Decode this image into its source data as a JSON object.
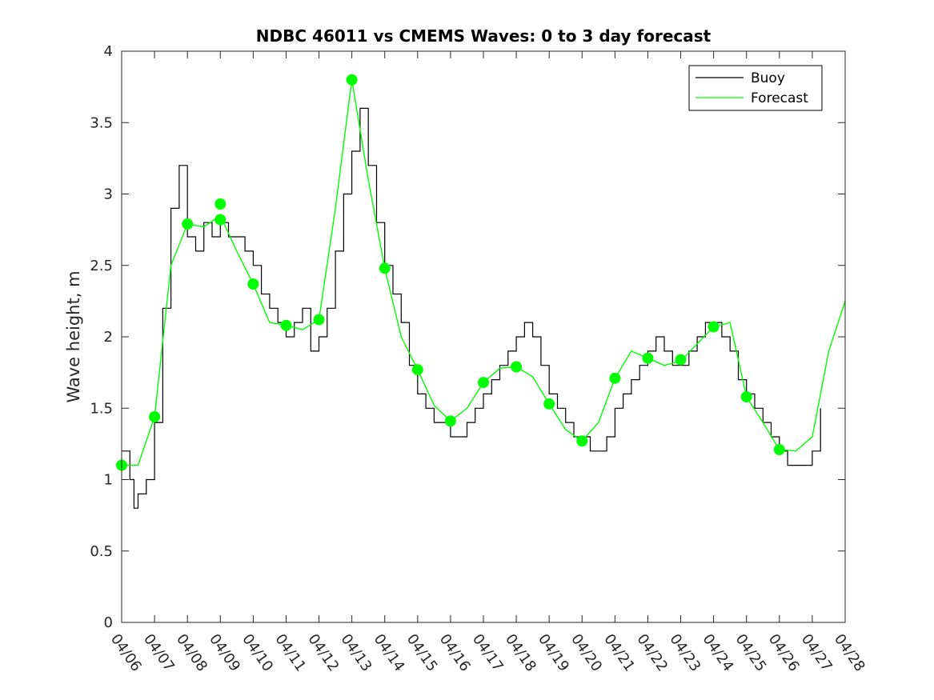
{
  "chart_data": {
    "type": "line",
    "title": "NDBC 46011 vs CMEMS Waves: 0 to 3 day forecast",
    "xlabel": "",
    "ylabel": "Wave height, m",
    "xlim": [
      "04/06",
      "04/28"
    ],
    "ylim": [
      0,
      4
    ],
    "x_tick_labels": [
      "04/06",
      "04/07",
      "04/08",
      "04/09",
      "04/10",
      "04/11",
      "04/12",
      "04/13",
      "04/14",
      "04/15",
      "04/16",
      "04/17",
      "04/18",
      "04/19",
      "04/20",
      "04/21",
      "04/22",
      "04/23",
      "04/24",
      "04/25",
      "04/26",
      "04/27",
      "04/28"
    ],
    "y_tick_labels": [
      "0",
      "0.5",
      "1",
      "1.5",
      "2",
      "2.5",
      "3",
      "3.5",
      "4"
    ],
    "y_ticks": [
      0,
      0.5,
      1,
      1.5,
      2,
      2.5,
      3,
      3.5,
      4
    ],
    "legend": {
      "position": "top-right",
      "entries": [
        "Buoy",
        "Forecast"
      ]
    },
    "colors": {
      "buoy": "#000000",
      "forecast": "#00ff00",
      "marker": "#00ff00"
    },
    "series": [
      {
        "name": "Buoy",
        "x": [
          "04/06 00:00",
          "04/06 06:00",
          "04/06 09:00",
          "04/06 12:00",
          "04/06 18:00",
          "04/07 00:00",
          "04/07 06:00",
          "04/07 12:00",
          "04/07 18:00",
          "04/08 00:00",
          "04/08 06:00",
          "04/08 12:00",
          "04/08 18:00",
          "04/09 00:00",
          "04/09 06:00",
          "04/09 12:00",
          "04/09 18:00",
          "04/10 00:00",
          "04/10 06:00",
          "04/10 12:00",
          "04/10 18:00",
          "04/11 00:00",
          "04/11 06:00",
          "04/11 12:00",
          "04/11 18:00",
          "04/12 00:00",
          "04/12 06:00",
          "04/12 12:00",
          "04/12 18:00",
          "04/13 00:00",
          "04/13 06:00",
          "04/13 12:00",
          "04/13 18:00",
          "04/14 00:00",
          "04/14 06:00",
          "04/14 12:00",
          "04/14 18:00",
          "04/15 00:00",
          "04/15 06:00",
          "04/15 12:00",
          "04/15 18:00",
          "04/16 00:00",
          "04/16 06:00",
          "04/16 12:00",
          "04/16 18:00",
          "04/17 00:00",
          "04/17 06:00",
          "04/17 12:00",
          "04/17 18:00",
          "04/18 00:00",
          "04/18 06:00",
          "04/18 12:00",
          "04/18 18:00",
          "04/19 00:00",
          "04/19 06:00",
          "04/19 12:00",
          "04/19 18:00",
          "04/20 00:00",
          "04/20 06:00",
          "04/20 12:00",
          "04/20 18:00",
          "04/21 00:00",
          "04/21 06:00",
          "04/21 12:00",
          "04/21 18:00",
          "04/22 00:00",
          "04/22 06:00",
          "04/22 12:00",
          "04/22 18:00",
          "04/23 00:00",
          "04/23 06:00",
          "04/23 12:00",
          "04/23 18:00",
          "04/24 00:00",
          "04/24 06:00",
          "04/24 12:00",
          "04/24 18:00",
          "04/25 00:00",
          "04/25 06:00",
          "04/25 12:00",
          "04/25 18:00",
          "04/26 00:00",
          "04/26 06:00",
          "04/26 12:00",
          "04/26 18:00",
          "04/27 00:00",
          "04/27 06:00"
        ],
        "values": [
          1.2,
          1.0,
          0.8,
          0.9,
          1.0,
          1.4,
          2.2,
          2.9,
          3.2,
          2.7,
          2.6,
          2.8,
          2.7,
          2.8,
          2.7,
          2.7,
          2.6,
          2.5,
          2.3,
          2.2,
          2.1,
          2.0,
          2.1,
          2.2,
          1.9,
          2.0,
          2.2,
          2.6,
          3.0,
          3.3,
          3.6,
          3.2,
          2.8,
          2.5,
          2.3,
          2.1,
          1.8,
          1.6,
          1.5,
          1.4,
          1.4,
          1.3,
          1.3,
          1.4,
          1.5,
          1.6,
          1.7,
          1.8,
          1.9,
          2.0,
          2.1,
          2.0,
          1.8,
          1.6,
          1.5,
          1.4,
          1.3,
          1.3,
          1.2,
          1.2,
          1.3,
          1.5,
          1.6,
          1.7,
          1.8,
          1.9,
          2.0,
          1.9,
          1.8,
          1.8,
          1.9,
          2.0,
          2.1,
          2.1,
          2.0,
          1.9,
          1.7,
          1.6,
          1.5,
          1.4,
          1.3,
          1.2,
          1.1,
          1.1,
          1.1,
          1.2,
          1.5
        ]
      },
      {
        "name": "Forecast",
        "x": [
          "04/06 00:00",
          "04/06 12:00",
          "04/07 00:00",
          "04/07 12:00",
          "04/08 00:00",
          "04/08 12:00",
          "04/09 00:00",
          "04/09 12:00",
          "04/10 00:00",
          "04/10 12:00",
          "04/11 00:00",
          "04/11 12:00",
          "04/12 00:00",
          "04/12 12:00",
          "04/13 00:00",
          "04/13 12:00",
          "04/14 00:00",
          "04/14 12:00",
          "04/15 00:00",
          "04/15 12:00",
          "04/16 00:00",
          "04/16 12:00",
          "04/17 00:00",
          "04/17 12:00",
          "04/18 00:00",
          "04/18 12:00",
          "04/19 00:00",
          "04/19 12:00",
          "04/20 00:00",
          "04/20 12:00",
          "04/21 00:00",
          "04/21 12:00",
          "04/22 00:00",
          "04/22 12:00",
          "04/23 00:00",
          "04/23 12:00",
          "04/24 00:00",
          "04/24 12:00",
          "04/25 00:00",
          "04/25 12:00",
          "04/26 00:00",
          "04/26 12:00",
          "04/27 00:00",
          "04/27 12:00",
          "04/28 00:00"
        ],
        "values": [
          1.1,
          1.1,
          1.44,
          2.5,
          2.79,
          2.77,
          2.85,
          2.6,
          2.37,
          2.1,
          2.08,
          2.05,
          2.12,
          2.9,
          3.8,
          3.1,
          2.48,
          2.0,
          1.77,
          1.52,
          1.41,
          1.5,
          1.68,
          1.78,
          1.79,
          1.72,
          1.53,
          1.35,
          1.27,
          1.4,
          1.71,
          1.9,
          1.85,
          1.8,
          1.83,
          1.95,
          2.07,
          2.1,
          1.58,
          1.4,
          1.21,
          1.2,
          1.3,
          1.9,
          2.25
        ]
      },
      {
        "name": "Forecast start points",
        "x": [
          "04/06",
          "04/07",
          "04/08",
          "04/09",
          "04/09",
          "04/10",
          "04/11",
          "04/12",
          "04/13",
          "04/14",
          "04/15",
          "04/16",
          "04/17",
          "04/18",
          "04/19",
          "04/20",
          "04/21",
          "04/22",
          "04/23",
          "04/24",
          "04/25",
          "04/26"
        ],
        "values": [
          1.1,
          1.44,
          2.79,
          2.93,
          2.82,
          2.37,
          2.08,
          2.12,
          3.8,
          2.48,
          1.77,
          1.41,
          1.68,
          1.79,
          1.53,
          1.27,
          1.71,
          1.85,
          1.84,
          2.07,
          1.58,
          1.21
        ]
      }
    ]
  }
}
